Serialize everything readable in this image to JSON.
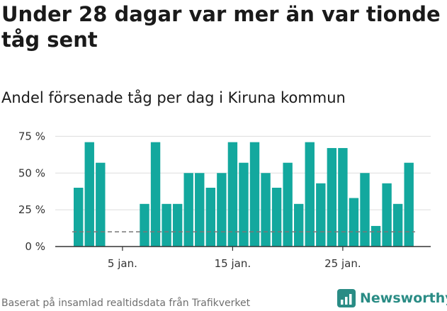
{
  "title": "Under 28 dagar var mer än var tionde tåg sent",
  "subtitle": "Andel försenade tåg per dag i Kiruna kommun",
  "footer": "Baserat på insamlad realtidsdata från Trafikverket",
  "brand": {
    "name": "Newsworthy",
    "icon": "newsworthy-logo-icon"
  },
  "colors": {
    "bar": "#13a89e",
    "grid": "#dddddd",
    "axis": "#333333",
    "reference": "#777777"
  },
  "chart_data": {
    "type": "bar",
    "x": [
      1,
      2,
      3,
      4,
      5,
      6,
      7,
      8,
      9,
      10,
      11,
      12,
      13,
      14,
      15,
      16,
      17,
      18,
      19,
      20,
      21,
      22,
      23,
      24,
      25,
      26,
      27,
      28,
      29,
      30,
      31
    ],
    "values": [
      40,
      71,
      57,
      null,
      null,
      null,
      29,
      71,
      29,
      29,
      50,
      50,
      40,
      50,
      71,
      57,
      71,
      50,
      40,
      57,
      29,
      71,
      43,
      67,
      67,
      33,
      50,
      14,
      43,
      29,
      57
    ],
    "ylim": [
      0,
      80
    ],
    "yticks": [
      0,
      25,
      50,
      75
    ],
    "ytick_labels": [
      "0 %",
      "25 %",
      "50 %",
      "75 %"
    ],
    "xticks": [
      5,
      15,
      25
    ],
    "xtick_labels": [
      "5 jan.",
      "15 jan.",
      "25 jan."
    ],
    "reference_line": 10,
    "grid": true
  }
}
